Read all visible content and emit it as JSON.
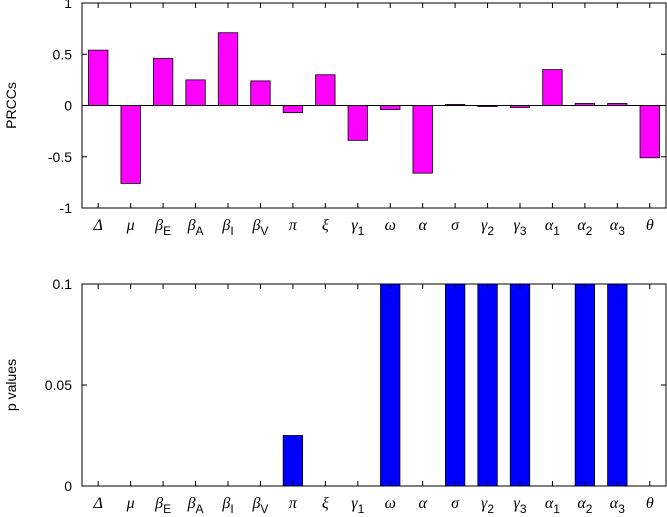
{
  "chart_data": [
    {
      "type": "bar",
      "ylabel": "PRCCs",
      "categories": [
        "Δ",
        "μ",
        "βE",
        "βA",
        "βI",
        "βV",
        "π",
        "ξ",
        "γ1",
        "ω",
        "α",
        "σ",
        "γ2",
        "γ3",
        "α1",
        "α2",
        "α3",
        "θ"
      ],
      "values": [
        0.54,
        -0.76,
        0.46,
        0.25,
        0.71,
        0.24,
        -0.07,
        0.3,
        -0.34,
        -0.04,
        -0.66,
        0.01,
        -0.01,
        -0.02,
        0.35,
        0.02,
        0.02,
        -0.51
      ],
      "color": "#ff00ff",
      "ylim": [
        -1,
        1
      ],
      "yticks": [
        -1,
        -0.5,
        0,
        0.5,
        1
      ]
    },
    {
      "type": "bar",
      "ylabel": "p values",
      "categories": [
        "Δ",
        "μ",
        "βE",
        "βA",
        "βI",
        "βV",
        "π",
        "ξ",
        "γ1",
        "ω",
        "α",
        "σ",
        "γ2",
        "γ3",
        "α1",
        "α2",
        "α3",
        "θ"
      ],
      "values": [
        0,
        0,
        0,
        0,
        0,
        0,
        0.025,
        0,
        0,
        0.1,
        0,
        0.1,
        0.1,
        0.1,
        0,
        0.1,
        0.1,
        0
      ],
      "color": "#0000ff",
      "ylim": [
        0,
        0.1
      ],
      "yticks": [
        0,
        0.05,
        0.1
      ]
    }
  ]
}
